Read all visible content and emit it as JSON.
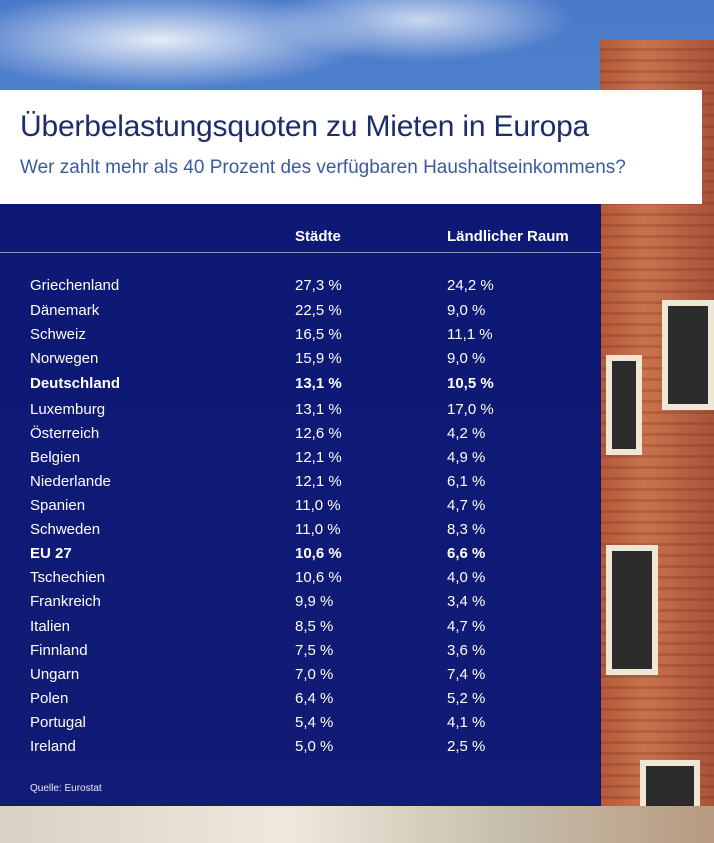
{
  "header": {
    "title": "Überbelastungsquoten zu Mieten in Europa",
    "subtitle": "Wer zahlt mehr als 40 Prozent des verfügbaren Haushaltseinkommens?"
  },
  "table": {
    "columns": [
      "",
      "Städte",
      "Ländlicher Raum"
    ],
    "rows": [
      {
        "country": "Griechenland",
        "city": "27,3 %",
        "rural": "24,2 %",
        "bold": false
      },
      {
        "country": "Dänemark",
        "city": "22,5 %",
        "rural": "9,0 %",
        "bold": false
      },
      {
        "country": "Schweiz",
        "city": "16,5 %",
        "rural": "11,1 %",
        "bold": false
      },
      {
        "country": "Norwegen",
        "city": "15,9 %",
        "rural": "9,0 %",
        "bold": false
      },
      {
        "country": "Deutschland",
        "city": "13,1 %",
        "rural": "10,5 %",
        "bold": true
      },
      {
        "country": "Luxemburg",
        "city": "13,1 %",
        "rural": "17,0 %",
        "bold": false
      },
      {
        "country": "Österreich",
        "city": "12,6 %",
        "rural": "4,2 %",
        "bold": false
      },
      {
        "country": "Belgien",
        "city": "12,1 %",
        "rural": "4,9 %",
        "bold": false
      },
      {
        "country": "Niederlande",
        "city": "12,1 %",
        "rural": "6,1 %",
        "bold": false
      },
      {
        "country": "Spanien",
        "city": "11,0 %",
        "rural": "4,7 %",
        "bold": false
      },
      {
        "country": "Schweden",
        "city": "11,0 %",
        "rural": "8,3 %",
        "bold": false
      },
      {
        "country": "EU 27",
        "city": "10,6 %",
        "rural": "6,6 %",
        "bold": true
      },
      {
        "country": "Tschechien",
        "city": "10,6 %",
        "rural": "4,0 %",
        "bold": false
      },
      {
        "country": "Frankreich",
        "city": "9,9 %",
        "rural": "3,4 %",
        "bold": false
      },
      {
        "country": "Italien",
        "city": "8,5 %",
        "rural": "4,7 %",
        "bold": false
      },
      {
        "country": "Finnland",
        "city": "7,5 %",
        "rural": "3,6 %",
        "bold": false
      },
      {
        "country": "Ungarn",
        "city": "7,0 %",
        "rural": "7,4 %",
        "bold": false
      },
      {
        "country": "Polen",
        "city": "6,4 %",
        "rural": "5,2 %",
        "bold": false
      },
      {
        "country": "Portugal",
        "city": "5,4 %",
        "rural": "4,1 %",
        "bold": false
      },
      {
        "country": "Ireland",
        "city": "5,0 %",
        "rural": "2,5 %",
        "bold": false
      }
    ]
  },
  "footer": {
    "source": "Quelle: Eurostat"
  },
  "colors": {
    "panel": "#08106e",
    "title": "#1e2c6b",
    "subtitle": "#3b5aa3"
  }
}
